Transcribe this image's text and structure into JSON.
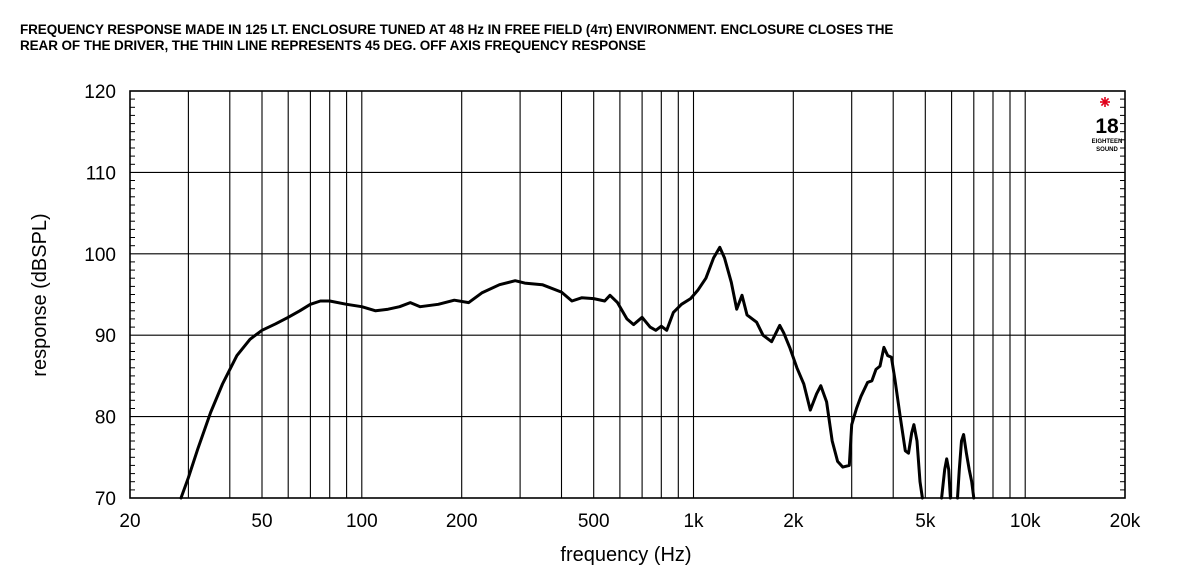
{
  "caption": {
    "line1": "FREQUENCY RESPONSE MADE IN 125 LT. ENCLOSURE TUNED AT 48 Hz IN FREE FIELD (4π) ENVIRONMENT. ENCLOSURE CLOSES THE",
    "line2": "REAR OF THE DRIVER, THE THIN LINE REPRESENTS 45 DEG. OFF AXIS FREQUENCY RESPONSE"
  },
  "logo": {
    "number": "18",
    "small_text": "EIGHTEEN",
    "sound_text": "SOUND"
  },
  "chart_data": {
    "type": "line",
    "xlabel": "frequency (Hz)",
    "ylabel": "response (dBSPL)",
    "xscale": "log",
    "xlim": [
      20,
      20000
    ],
    "ylim": [
      70,
      120
    ],
    "grid": true,
    "x_ticks": [
      {
        "value": 20,
        "label": "20"
      },
      {
        "value": 50,
        "label": "50"
      },
      {
        "value": 100,
        "label": "100"
      },
      {
        "value": 200,
        "label": "200"
      },
      {
        "value": 500,
        "label": "500"
      },
      {
        "value": 1000,
        "label": "1k"
      },
      {
        "value": 2000,
        "label": "2k"
      },
      {
        "value": 5000,
        "label": "5k"
      },
      {
        "value": 10000,
        "label": "10k"
      },
      {
        "value": 20000,
        "label": "20k"
      }
    ],
    "y_ticks": [
      {
        "value": 70,
        "label": "70"
      },
      {
        "value": 80,
        "label": "80"
      },
      {
        "value": 90,
        "label": "90"
      },
      {
        "value": 100,
        "label": "100"
      },
      {
        "value": 110,
        "label": "110"
      },
      {
        "value": 120,
        "label": "120"
      }
    ],
    "series": [
      {
        "points": [
          [
            28.5,
            70
          ],
          [
            30,
            72.5
          ],
          [
            32,
            76
          ],
          [
            35,
            80.5
          ],
          [
            38,
            84
          ],
          [
            42,
            87.5
          ],
          [
            46,
            89.5
          ],
          [
            50,
            90.6
          ],
          [
            55,
            91.4
          ],
          [
            60,
            92.2
          ],
          [
            65,
            93
          ],
          [
            70,
            93.8
          ],
          [
            75,
            94.2
          ],
          [
            80,
            94.2
          ],
          [
            90,
            93.8
          ],
          [
            100,
            93.5
          ],
          [
            110,
            93.0
          ],
          [
            120,
            93.2
          ],
          [
            130,
            93.5
          ],
          [
            140,
            94.0
          ],
          [
            150,
            93.5
          ],
          [
            170,
            93.8
          ],
          [
            190,
            94.3
          ],
          [
            210,
            94.0
          ],
          [
            230,
            95.2
          ],
          [
            260,
            96.2
          ],
          [
            290,
            96.7
          ],
          [
            310,
            96.4
          ],
          [
            350,
            96.2
          ],
          [
            400,
            95.3
          ],
          [
            430,
            94.2
          ],
          [
            460,
            94.6
          ],
          [
            500,
            94.5
          ],
          [
            540,
            94.2
          ],
          [
            560,
            94.9
          ],
          [
            590,
            94.0
          ],
          [
            630,
            92.0
          ],
          [
            660,
            91.3
          ],
          [
            700,
            92.2
          ],
          [
            740,
            91.0
          ],
          [
            770,
            90.6
          ],
          [
            800,
            91.1
          ],
          [
            830,
            90.6
          ],
          [
            870,
            92.8
          ],
          [
            920,
            93.8
          ],
          [
            980,
            94.5
          ],
          [
            1030,
            95.5
          ],
          [
            1090,
            97.0
          ],
          [
            1150,
            99.5
          ],
          [
            1200,
            100.8
          ],
          [
            1240,
            99.5
          ],
          [
            1300,
            96.5
          ],
          [
            1350,
            93.2
          ],
          [
            1400,
            94.9
          ],
          [
            1450,
            92.5
          ],
          [
            1550,
            91.6
          ],
          [
            1620,
            90.0
          ],
          [
            1720,
            89.2
          ],
          [
            1820,
            91.2
          ],
          [
            1870,
            90.3
          ],
          [
            1950,
            88.5
          ],
          [
            2050,
            86.0
          ],
          [
            2150,
            84.0
          ],
          [
            2250,
            80.8
          ],
          [
            2350,
            82.8
          ],
          [
            2420,
            83.8
          ],
          [
            2520,
            81.8
          ],
          [
            2620,
            77.0
          ],
          [
            2720,
            74.5
          ],
          [
            2820,
            73.8
          ],
          [
            2950,
            74.0
          ],
          [
            3000,
            79.0
          ],
          [
            3100,
            81.0
          ],
          [
            3200,
            82.5
          ],
          [
            3350,
            84.2
          ],
          [
            3450,
            84.4
          ],
          [
            3550,
            85.8
          ],
          [
            3650,
            86.2
          ],
          [
            3750,
            88.5
          ],
          [
            3850,
            87.5
          ],
          [
            3950,
            87.3
          ],
          [
            4050,
            84.5
          ],
          [
            4200,
            80.0
          ],
          [
            4350,
            75.8
          ],
          [
            4450,
            75.5
          ],
          [
            4550,
            78.0
          ],
          [
            4620,
            79.0
          ],
          [
            4720,
            77.0
          ],
          [
            4820,
            72.0
          ],
          [
            4900,
            70.0
          ]
        ]
      },
      {
        "points": [
          [
            5600,
            70
          ],
          [
            5720,
            73.5
          ],
          [
            5800,
            74.8
          ],
          [
            5880,
            73.5
          ],
          [
            5950,
            70
          ]
        ]
      },
      {
        "points": [
          [
            6250,
            70
          ],
          [
            6330,
            73.5
          ],
          [
            6430,
            77.0
          ],
          [
            6520,
            77.8
          ],
          [
            6650,
            75.5
          ],
          [
            6780,
            73.5
          ],
          [
            6900,
            72.0
          ],
          [
            7000,
            70
          ]
        ]
      }
    ]
  }
}
